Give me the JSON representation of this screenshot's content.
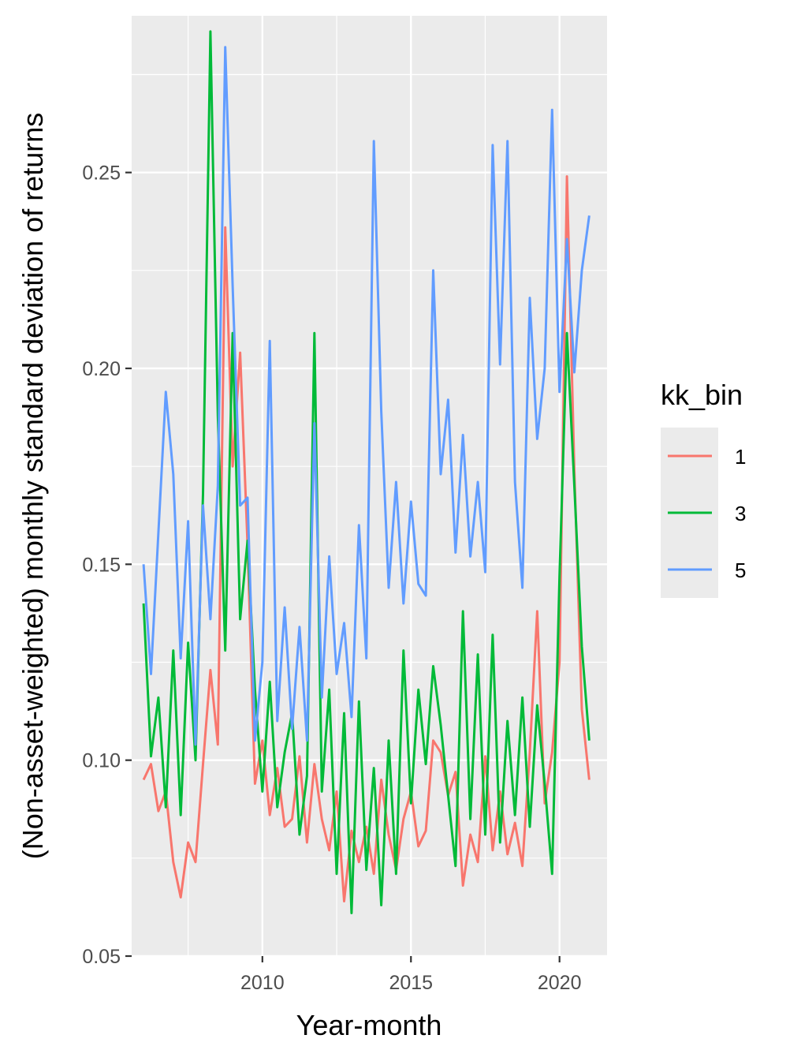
{
  "chart_data": {
    "type": "line",
    "title": "",
    "xlabel": "Year-month",
    "ylabel": "(Non-asset-weighted) monthly standard deviation of returns",
    "xlim": [
      2005.6,
      2021.6
    ],
    "ylim": [
      0.05,
      0.29
    ],
    "x_ticks": [
      2010,
      2015,
      2020
    ],
    "x_tick_labels": [
      "2010",
      "2015",
      "2020"
    ],
    "y_ticks": [
      0.05,
      0.1,
      0.15,
      0.2,
      0.25
    ],
    "y_tick_labels": [
      "0.05",
      "0.10",
      "0.15",
      "0.20",
      "0.25"
    ],
    "grid": true,
    "legend": {
      "title": "kk_bin",
      "position": "right"
    },
    "series": [
      {
        "name": "1",
        "color": "#F8766D",
        "points": [
          [
            2006.0,
            0.095
          ],
          [
            2006.25,
            0.099
          ],
          [
            2006.5,
            0.087
          ],
          [
            2006.75,
            0.092
          ],
          [
            2007.0,
            0.074
          ],
          [
            2007.25,
            0.065
          ],
          [
            2007.5,
            0.079
          ],
          [
            2007.75,
            0.074
          ],
          [
            2008.0,
            0.099
          ],
          [
            2008.25,
            0.123
          ],
          [
            2008.5,
            0.104
          ],
          [
            2008.75,
            0.236
          ],
          [
            2009.0,
            0.175
          ],
          [
            2009.25,
            0.204
          ],
          [
            2009.5,
            0.155
          ],
          [
            2009.75,
            0.094
          ],
          [
            2010.0,
            0.105
          ],
          [
            2010.25,
            0.086
          ],
          [
            2010.5,
            0.098
          ],
          [
            2010.75,
            0.083
          ],
          [
            2011.0,
            0.085
          ],
          [
            2011.25,
            0.101
          ],
          [
            2011.5,
            0.079
          ],
          [
            2011.75,
            0.099
          ],
          [
            2012.0,
            0.085
          ],
          [
            2012.25,
            0.077
          ],
          [
            2012.5,
            0.092
          ],
          [
            2012.75,
            0.064
          ],
          [
            2013.0,
            0.082
          ],
          [
            2013.25,
            0.074
          ],
          [
            2013.5,
            0.083
          ],
          [
            2013.75,
            0.071
          ],
          [
            2014.0,
            0.095
          ],
          [
            2014.25,
            0.081
          ],
          [
            2014.5,
            0.072
          ],
          [
            2014.75,
            0.085
          ],
          [
            2015.0,
            0.092
          ],
          [
            2015.25,
            0.078
          ],
          [
            2015.5,
            0.082
          ],
          [
            2015.75,
            0.105
          ],
          [
            2016.0,
            0.102
          ],
          [
            2016.25,
            0.091
          ],
          [
            2016.5,
            0.097
          ],
          [
            2016.75,
            0.068
          ],
          [
            2017.0,
            0.081
          ],
          [
            2017.25,
            0.074
          ],
          [
            2017.5,
            0.101
          ],
          [
            2017.75,
            0.077
          ],
          [
            2018.0,
            0.092
          ],
          [
            2018.25,
            0.076
          ],
          [
            2018.5,
            0.084
          ],
          [
            2018.75,
            0.073
          ],
          [
            2019.0,
            0.102
          ],
          [
            2019.25,
            0.138
          ],
          [
            2019.5,
            0.089
          ],
          [
            2019.75,
            0.102
          ],
          [
            2020.0,
            0.125
          ],
          [
            2020.25,
            0.249
          ],
          [
            2020.5,
            0.174
          ],
          [
            2020.75,
            0.113
          ],
          [
            2021.0,
            0.095
          ]
        ]
      },
      {
        "name": "3",
        "color": "#00BA38",
        "points": [
          [
            2006.0,
            0.14
          ],
          [
            2006.25,
            0.101
          ],
          [
            2006.5,
            0.116
          ],
          [
            2006.75,
            0.088
          ],
          [
            2007.0,
            0.128
          ],
          [
            2007.25,
            0.086
          ],
          [
            2007.5,
            0.13
          ],
          [
            2007.75,
            0.1
          ],
          [
            2008.0,
            0.168
          ],
          [
            2008.25,
            0.286
          ],
          [
            2008.5,
            0.188
          ],
          [
            2008.75,
            0.128
          ],
          [
            2009.0,
            0.209
          ],
          [
            2009.25,
            0.136
          ],
          [
            2009.5,
            0.156
          ],
          [
            2009.75,
            0.118
          ],
          [
            2010.0,
            0.092
          ],
          [
            2010.25,
            0.12
          ],
          [
            2010.5,
            0.088
          ],
          [
            2010.75,
            0.102
          ],
          [
            2011.0,
            0.112
          ],
          [
            2011.25,
            0.081
          ],
          [
            2011.5,
            0.096
          ],
          [
            2011.75,
            0.209
          ],
          [
            2012.0,
            0.092
          ],
          [
            2012.25,
            0.118
          ],
          [
            2012.5,
            0.071
          ],
          [
            2012.75,
            0.112
          ],
          [
            2013.0,
            0.061
          ],
          [
            2013.25,
            0.115
          ],
          [
            2013.5,
            0.072
          ],
          [
            2013.75,
            0.098
          ],
          [
            2014.0,
            0.063
          ],
          [
            2014.25,
            0.105
          ],
          [
            2014.5,
            0.071
          ],
          [
            2014.75,
            0.128
          ],
          [
            2015.0,
            0.089
          ],
          [
            2015.25,
            0.118
          ],
          [
            2015.5,
            0.099
          ],
          [
            2015.75,
            0.124
          ],
          [
            2016.0,
            0.109
          ],
          [
            2016.25,
            0.091
          ],
          [
            2016.5,
            0.073
          ],
          [
            2016.75,
            0.138
          ],
          [
            2017.0,
            0.085
          ],
          [
            2017.25,
            0.127
          ],
          [
            2017.5,
            0.081
          ],
          [
            2017.75,
            0.132
          ],
          [
            2018.0,
            0.079
          ],
          [
            2018.25,
            0.11
          ],
          [
            2018.5,
            0.086
          ],
          [
            2018.75,
            0.116
          ],
          [
            2019.0,
            0.083
          ],
          [
            2019.25,
            0.114
          ],
          [
            2019.5,
            0.094
          ],
          [
            2019.75,
            0.071
          ],
          [
            2020.0,
            0.147
          ],
          [
            2020.25,
            0.209
          ],
          [
            2020.5,
            0.17
          ],
          [
            2020.75,
            0.129
          ],
          [
            2021.0,
            0.105
          ]
        ]
      },
      {
        "name": "5",
        "color": "#619CFF",
        "points": [
          [
            2006.0,
            0.15
          ],
          [
            2006.25,
            0.122
          ],
          [
            2006.5,
            0.158
          ],
          [
            2006.75,
            0.194
          ],
          [
            2007.0,
            0.173
          ],
          [
            2007.25,
            0.126
          ],
          [
            2007.5,
            0.161
          ],
          [
            2007.75,
            0.104
          ],
          [
            2008.0,
            0.165
          ],
          [
            2008.25,
            0.136
          ],
          [
            2008.5,
            0.17
          ],
          [
            2008.75,
            0.282
          ],
          [
            2009.0,
            0.221
          ],
          [
            2009.25,
            0.165
          ],
          [
            2009.5,
            0.167
          ],
          [
            2009.75,
            0.105
          ],
          [
            2010.0,
            0.125
          ],
          [
            2010.25,
            0.207
          ],
          [
            2010.5,
            0.11
          ],
          [
            2010.75,
            0.139
          ],
          [
            2011.0,
            0.108
          ],
          [
            2011.25,
            0.134
          ],
          [
            2011.5,
            0.105
          ],
          [
            2011.75,
            0.186
          ],
          [
            2012.0,
            0.116
          ],
          [
            2012.25,
            0.152
          ],
          [
            2012.5,
            0.122
          ],
          [
            2012.75,
            0.135
          ],
          [
            2013.0,
            0.111
          ],
          [
            2013.25,
            0.16
          ],
          [
            2013.5,
            0.126
          ],
          [
            2013.75,
            0.258
          ],
          [
            2014.0,
            0.189
          ],
          [
            2014.25,
            0.144
          ],
          [
            2014.5,
            0.171
          ],
          [
            2014.75,
            0.14
          ],
          [
            2015.0,
            0.166
          ],
          [
            2015.25,
            0.145
          ],
          [
            2015.5,
            0.142
          ],
          [
            2015.75,
            0.225
          ],
          [
            2016.0,
            0.173
          ],
          [
            2016.25,
            0.192
          ],
          [
            2016.5,
            0.153
          ],
          [
            2016.75,
            0.183
          ],
          [
            2017.0,
            0.152
          ],
          [
            2017.25,
            0.171
          ],
          [
            2017.5,
            0.148
          ],
          [
            2017.75,
            0.257
          ],
          [
            2018.0,
            0.201
          ],
          [
            2018.25,
            0.258
          ],
          [
            2018.5,
            0.171
          ],
          [
            2018.75,
            0.144
          ],
          [
            2019.0,
            0.218
          ],
          [
            2019.25,
            0.182
          ],
          [
            2019.5,
            0.2
          ],
          [
            2019.75,
            0.266
          ],
          [
            2020.0,
            0.194
          ],
          [
            2020.25,
            0.233
          ],
          [
            2020.5,
            0.199
          ],
          [
            2020.75,
            0.225
          ],
          [
            2021.0,
            0.239
          ]
        ]
      }
    ]
  }
}
